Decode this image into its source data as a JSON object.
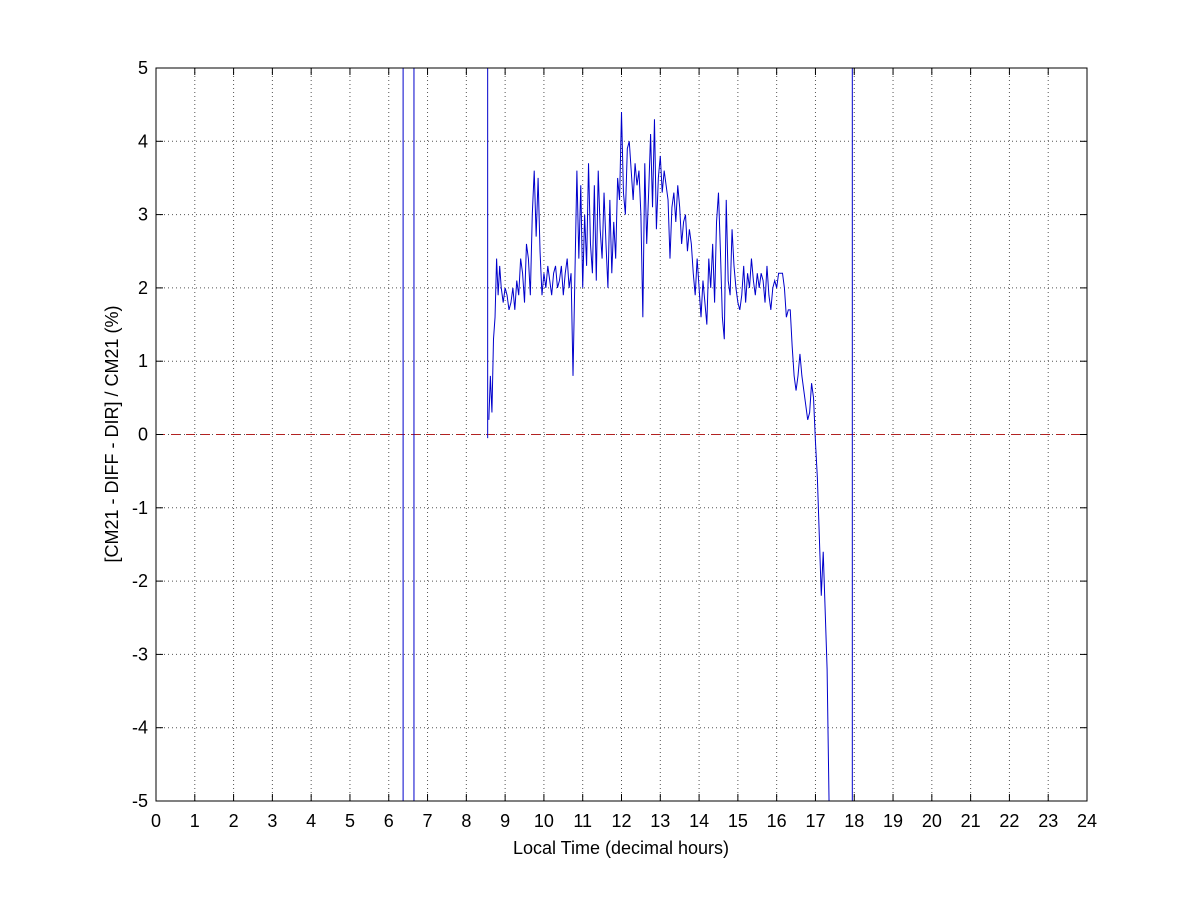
{
  "chart_data": {
    "type": "line",
    "title": "",
    "xlabel": "Local Time (decimal hours)",
    "ylabel": "[CM21 - DIFF - DIR] / CM21 (%)",
    "xlim": [
      0,
      24
    ],
    "ylim": [
      -5,
      5
    ],
    "xticks": [
      "0",
      "1",
      "2",
      "3",
      "4",
      "5",
      "6",
      "7",
      "8",
      "9",
      "10",
      "11",
      "12",
      "13",
      "14",
      "15",
      "16",
      "17",
      "18",
      "19",
      "20",
      "21",
      "22",
      "23",
      "24"
    ],
    "yticks": [
      "5",
      "4",
      "3",
      "2",
      "1",
      "0",
      "-1",
      "-2",
      "-3",
      "-4",
      "-5"
    ],
    "grid": true,
    "grid_style": "dotted",
    "colors": {
      "series": "#0000cc",
      "reference": "#b22222",
      "grid": "#555555",
      "axes": "#000000"
    },
    "reference_line": {
      "y": 0,
      "style": "dashed"
    },
    "vertical_segments": [
      {
        "x": 6.37,
        "y_from": 5,
        "y_to": -5
      },
      {
        "x": 6.65,
        "y_from": -5,
        "y_to": 5
      },
      {
        "x": 8.55,
        "y_from": 5,
        "y_to": -0.05
      },
      {
        "x": 17.95,
        "y_from": -5,
        "y_to": 5
      }
    ],
    "series": [
      {
        "x": [
          8.58,
          8.62,
          8.66,
          8.7,
          8.74,
          8.78,
          8.82,
          8.86,
          8.9,
          8.95,
          9.0,
          9.05,
          9.1,
          9.15,
          9.2,
          9.25,
          9.3,
          9.35,
          9.4,
          9.45,
          9.5,
          9.55,
          9.6,
          9.65,
          9.7,
          9.75,
          9.8,
          9.85,
          9.9,
          9.95,
          10.0,
          10.05,
          10.1,
          10.15,
          10.2,
          10.25,
          10.3,
          10.35,
          10.4,
          10.45,
          10.5,
          10.55,
          10.6,
          10.65,
          10.7,
          10.75,
          10.8,
          10.85,
          10.9,
          10.95,
          11.0,
          11.05,
          11.1,
          11.15,
          11.2,
          11.25,
          11.3,
          11.35,
          11.4,
          11.45,
          11.5,
          11.55,
          11.6,
          11.65,
          11.7,
          11.75,
          11.8,
          11.85,
          11.9,
          11.95,
          12.0,
          12.05,
          12.1,
          12.15,
          12.2,
          12.25,
          12.3,
          12.35,
          12.4,
          12.45,
          12.5,
          12.55,
          12.6,
          12.65,
          12.7,
          12.75,
          12.8,
          12.85,
          12.9,
          12.95,
          13.0,
          13.05,
          13.1,
          13.15,
          13.2,
          13.25,
          13.3,
          13.35,
          13.4,
          13.45,
          13.5,
          13.55,
          13.6,
          13.65,
          13.7,
          13.75,
          13.8,
          13.85,
          13.9,
          13.95,
          14.0,
          14.05,
          14.1,
          14.15,
          14.2,
          14.25,
          14.3,
          14.35,
          14.4,
          14.45,
          14.5,
          14.55,
          14.6,
          14.65,
          14.7,
          14.75,
          14.8,
          14.85,
          14.9,
          14.95,
          15.0,
          15.05,
          15.1,
          15.15,
          15.2,
          15.25,
          15.3,
          15.35,
          15.4,
          15.45,
          15.5,
          15.55,
          15.6,
          15.65,
          15.7,
          15.75,
          15.8,
          15.85,
          15.9,
          15.95,
          16.0,
          16.05,
          16.1,
          16.15,
          16.2,
          16.25,
          16.3,
          16.35,
          16.4,
          16.45,
          16.5,
          16.55,
          16.6,
          16.65,
          16.7,
          16.75,
          16.8,
          16.85,
          16.9,
          16.95,
          17.0,
          17.05,
          17.1,
          17.15,
          17.2,
          17.25,
          17.3,
          17.35
        ],
        "y": [
          0.2,
          0.8,
          0.3,
          1.3,
          1.6,
          2.4,
          1.9,
          2.3,
          2.0,
          1.8,
          2.0,
          1.9,
          1.7,
          1.8,
          2.0,
          1.7,
          2.1,
          1.9,
          2.4,
          2.2,
          1.8,
          2.6,
          2.4,
          1.9,
          3.0,
          3.6,
          2.7,
          3.5,
          2.5,
          1.9,
          2.2,
          2.0,
          2.3,
          2.1,
          1.9,
          2.2,
          2.3,
          2.0,
          2.1,
          2.3,
          1.9,
          2.2,
          2.4,
          2.0,
          2.2,
          0.8,
          2.2,
          3.6,
          2.4,
          3.4,
          2.0,
          3.0,
          2.3,
          3.7,
          2.6,
          2.2,
          3.4,
          2.1,
          3.6,
          2.8,
          2.4,
          3.3,
          2.6,
          2.0,
          3.2,
          2.2,
          2.9,
          2.4,
          3.5,
          3.2,
          4.4,
          3.3,
          3.0,
          3.9,
          4.0,
          3.6,
          3.2,
          3.7,
          3.4,
          3.6,
          3.0,
          1.6,
          3.7,
          2.6,
          3.3,
          4.1,
          3.1,
          4.3,
          2.8,
          3.5,
          3.8,
          3.3,
          3.6,
          3.4,
          3.2,
          2.4,
          3.1,
          3.3,
          2.9,
          3.4,
          3.1,
          2.6,
          2.9,
          3.0,
          2.5,
          2.8,
          2.6,
          2.2,
          1.9,
          2.4,
          2.0,
          1.6,
          2.1,
          1.8,
          1.5,
          2.4,
          2.0,
          2.6,
          1.8,
          2.9,
          3.3,
          2.5,
          1.6,
          1.3,
          3.2,
          2.1,
          1.9,
          2.8,
          2.3,
          2.0,
          1.8,
          1.7,
          1.9,
          2.3,
          1.8,
          2.2,
          2.0,
          2.4,
          2.1,
          1.9,
          2.2,
          2.0,
          2.2,
          2.1,
          1.8,
          2.3,
          1.9,
          1.7,
          2.0,
          2.1,
          2.0,
          2.2,
          2.2,
          2.2,
          2.0,
          1.6,
          1.7,
          1.7,
          1.2,
          0.8,
          0.6,
          0.8,
          1.1,
          0.8,
          0.6,
          0.4,
          0.2,
          0.3,
          0.7,
          0.5,
          -0.1,
          -0.6,
          -1.4,
          -2.2,
          -1.6,
          -2.4,
          -3.2,
          -5.0
        ]
      }
    ]
  }
}
